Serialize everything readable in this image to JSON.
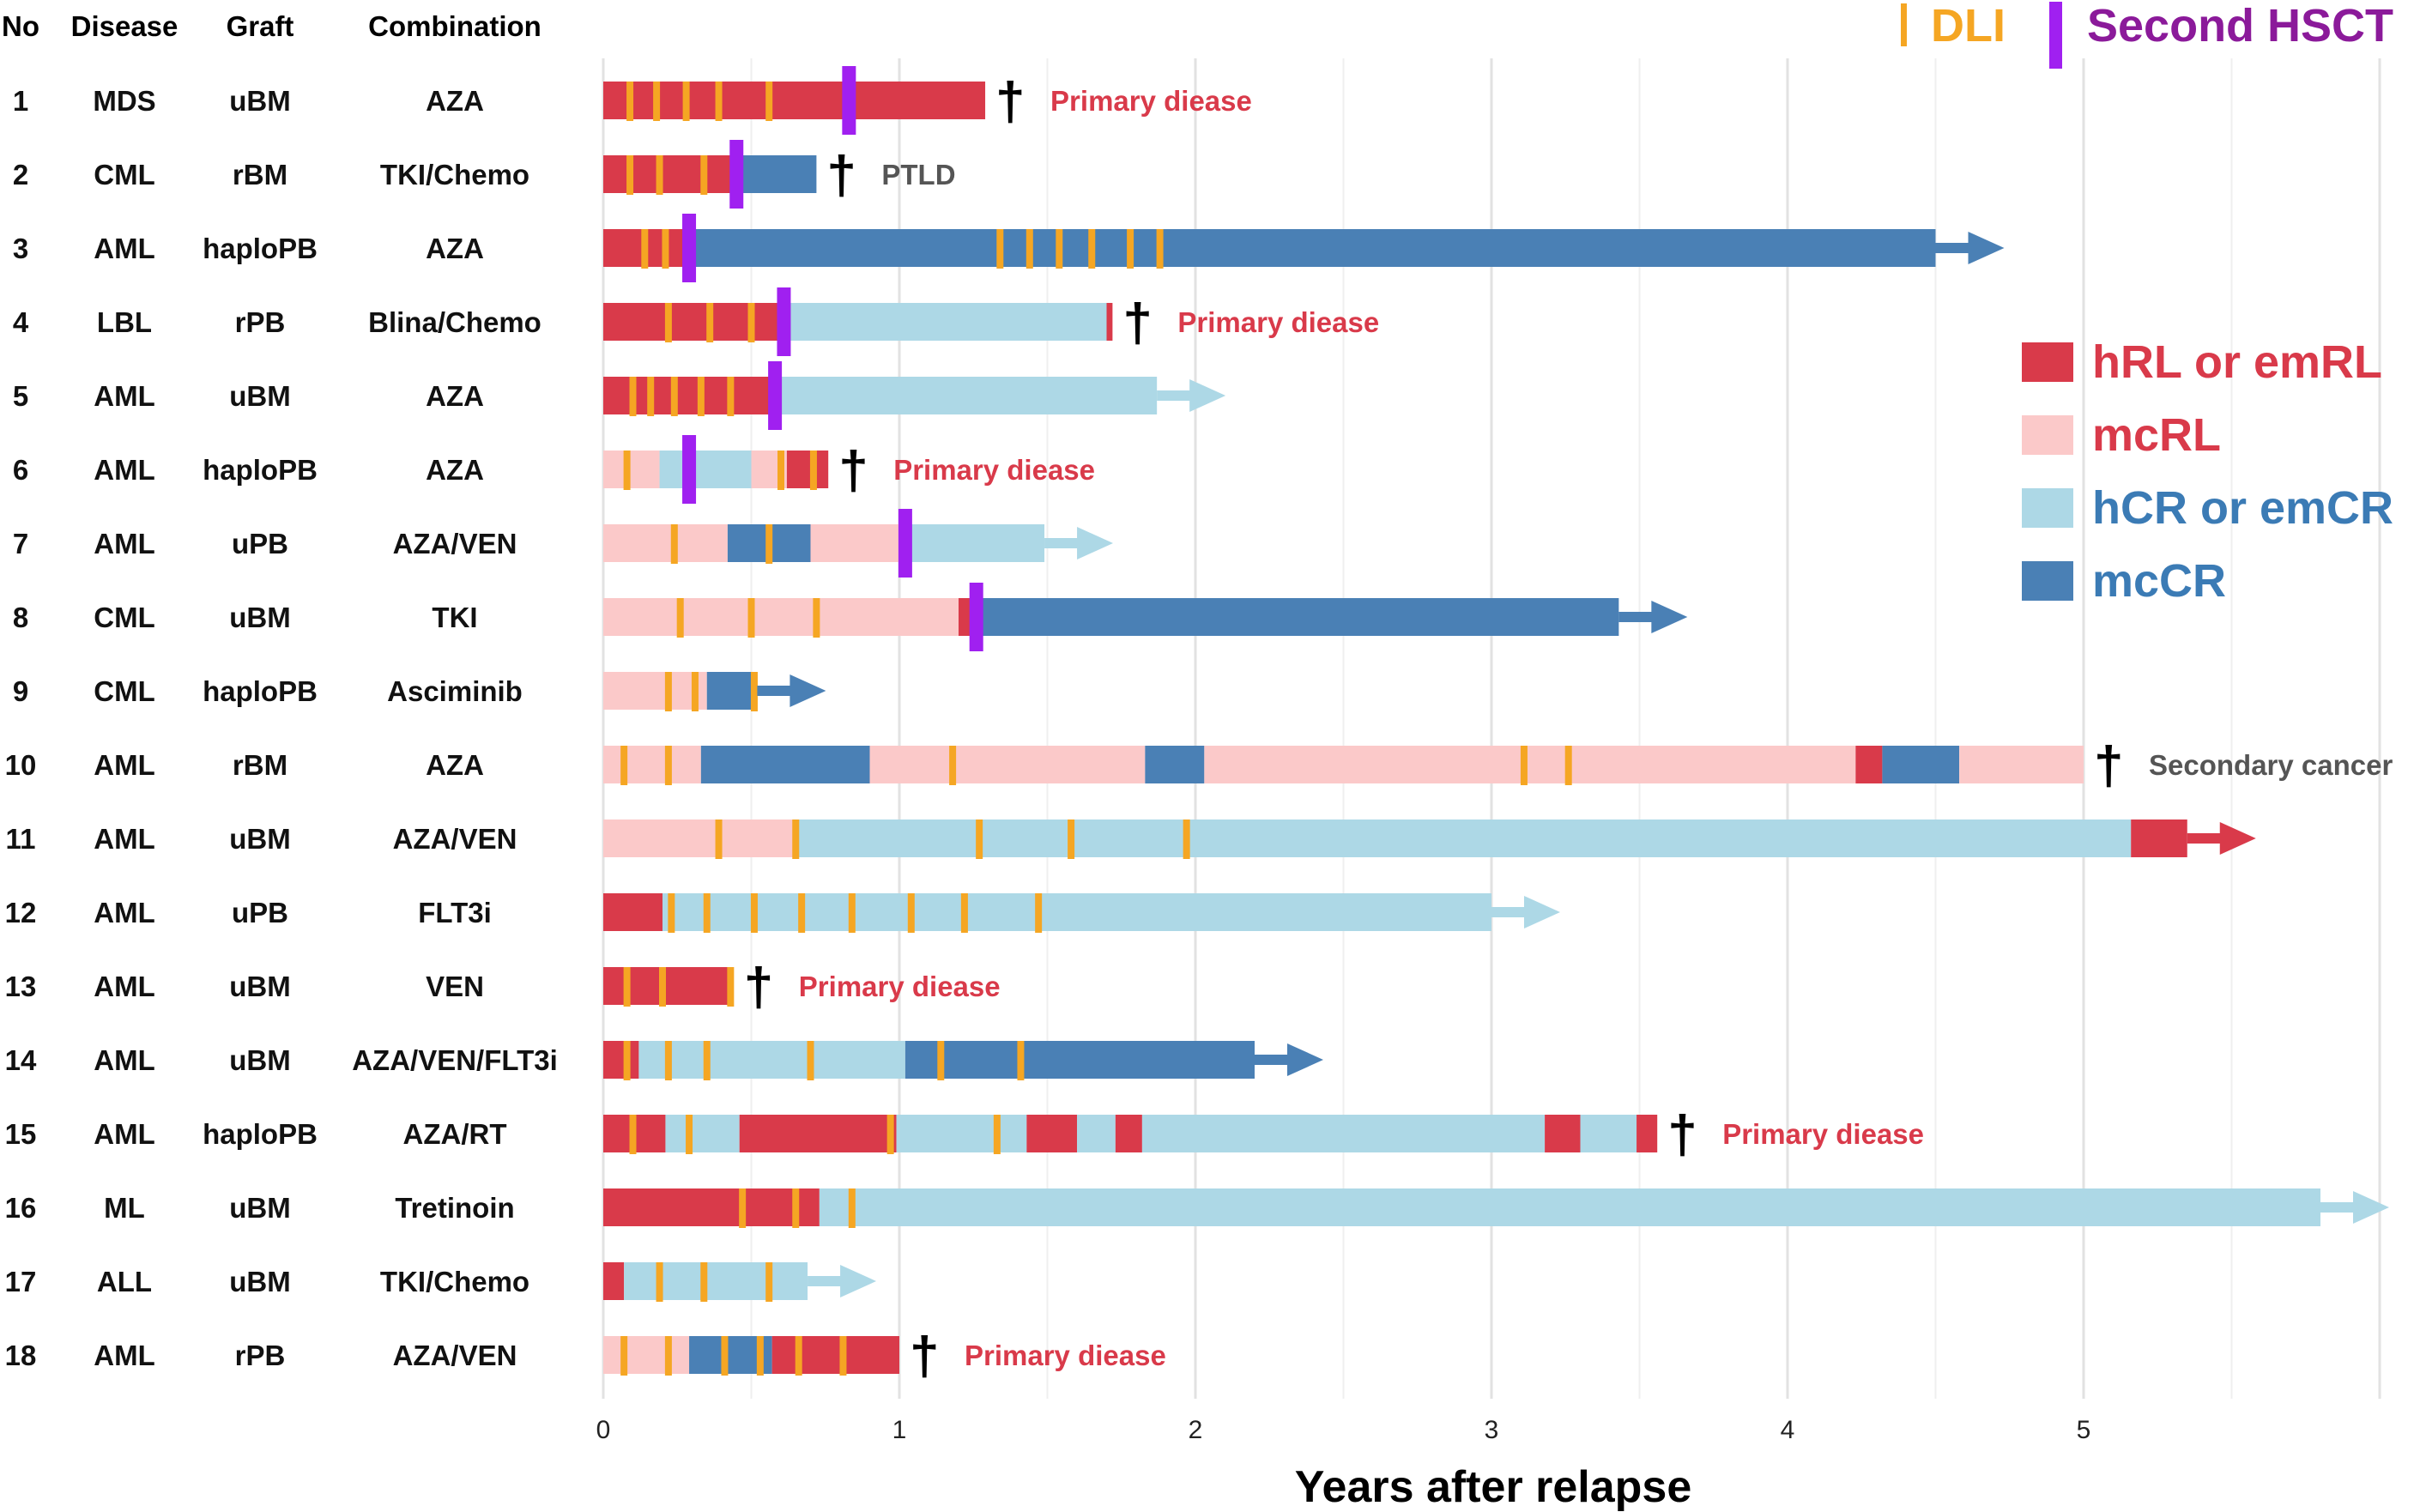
{
  "chart_data": {
    "type": "swimmer",
    "xlabel": "Years after relapse",
    "x_ticks": [
      0,
      1,
      2,
      3,
      4,
      5
    ],
    "xlim": [
      0,
      6
    ],
    "table_headers": {
      "no": "No",
      "disease": "Disease",
      "graft": "Graft",
      "combination": "Combination"
    },
    "legend": {
      "markers": [
        {
          "key": "dli",
          "label": "DLI",
          "color": "#F5A623"
        },
        {
          "key": "hsct",
          "label": "Second HSCT",
          "color": "#A020F0"
        }
      ],
      "states": [
        {
          "key": "hRL",
          "label": "hRL or emRL",
          "color": "#D93A4A",
          "text_color": "#D93A4A"
        },
        {
          "key": "mcRL",
          "label": "mcRL",
          "color": "#FBC9C9",
          "text_color": "#D93A4A"
        },
        {
          "key": "hCR",
          "label": "hCR or emCR",
          "color": "#ADD8E6",
          "text_color": "#3B7BB5"
        },
        {
          "key": "mcCR",
          "label": "mcCR",
          "color": "#4A80B5",
          "text_color": "#3B7BB5"
        }
      ]
    },
    "patients": [
      {
        "no": "1",
        "disease": "MDS",
        "graft": "uBM",
        "combination": "AZA",
        "segments": [
          {
            "state": "hRL",
            "start": 0,
            "end": 1.29
          }
        ],
        "dli": [
          0.09,
          0.18,
          0.28,
          0.39,
          0.56
        ],
        "hsct": [
          0.83
        ],
        "end": {
          "type": "death",
          "label": "Primary diease",
          "color": "#D93A4A"
        }
      },
      {
        "no": "2",
        "disease": "CML",
        "graft": "rBM",
        "combination": "TKI/Chemo",
        "segments": [
          {
            "state": "hRL",
            "start": 0,
            "end": 0.45
          },
          {
            "state": "mcCR",
            "start": 0.45,
            "end": 0.72
          }
        ],
        "dli": [
          0.09,
          0.19,
          0.34
        ],
        "hsct": [
          0.45
        ],
        "end": {
          "type": "death",
          "label": "PTLD",
          "color": "#555555"
        }
      },
      {
        "no": "3",
        "disease": "AML",
        "graft": "haploPB",
        "combination": "AZA",
        "segments": [
          {
            "state": "hRL",
            "start": 0,
            "end": 0.29
          },
          {
            "state": "mcCR",
            "start": 0.29,
            "end": 4.5
          }
        ],
        "dli": [
          0.14,
          0.21,
          1.34,
          1.44,
          1.54,
          1.65,
          1.78,
          1.88
        ],
        "hsct": [
          0.29
        ],
        "end": {
          "type": "arrow",
          "label": "",
          "color": "#4A80B5"
        }
      },
      {
        "no": "4",
        "disease": "LBL",
        "graft": "rPB",
        "combination": "Blina/Chemo",
        "segments": [
          {
            "state": "hRL",
            "start": 0,
            "end": 0.61
          },
          {
            "state": "hCR",
            "start": 0.61,
            "end": 1.7
          },
          {
            "state": "hRL",
            "start": 1.7,
            "end": 1.72
          }
        ],
        "dli": [
          0.22,
          0.36,
          0.5
        ],
        "hsct": [
          0.61
        ],
        "end": {
          "type": "death",
          "label": "Primary diease",
          "color": "#D93A4A"
        }
      },
      {
        "no": "5",
        "disease": "AML",
        "graft": "uBM",
        "combination": "AZA",
        "segments": [
          {
            "state": "hRL",
            "start": 0,
            "end": 0.58
          },
          {
            "state": "hCR",
            "start": 0.58,
            "end": 1.87
          }
        ],
        "dli": [
          0.1,
          0.16,
          0.24,
          0.33,
          0.43
        ],
        "hsct": [
          0.58
        ],
        "end": {
          "type": "arrow",
          "label": "",
          "color": "#ADD8E6"
        }
      },
      {
        "no": "6",
        "disease": "AML",
        "graft": "haploPB",
        "combination": "AZA",
        "segments": [
          {
            "state": "mcRL",
            "start": 0,
            "end": 0.19
          },
          {
            "state": "hCR",
            "start": 0.19,
            "end": 0.5
          },
          {
            "state": "mcRL",
            "start": 0.5,
            "end": 0.62
          },
          {
            "state": "hRL",
            "start": 0.62,
            "end": 0.76
          }
        ],
        "dli": [
          0.08,
          0.6,
          0.71
        ],
        "hsct": [
          0.29
        ],
        "end": {
          "type": "death",
          "label": "Primary diease",
          "color": "#D93A4A"
        }
      },
      {
        "no": "7",
        "disease": "AML",
        "graft": "uPB",
        "combination": "AZA/VEN",
        "segments": [
          {
            "state": "mcRL",
            "start": 0,
            "end": 0.42
          },
          {
            "state": "mcCR",
            "start": 0.42,
            "end": 0.7
          },
          {
            "state": "mcRL",
            "start": 0.7,
            "end": 1.02
          },
          {
            "state": "hCR",
            "start": 1.02,
            "end": 1.49
          }
        ],
        "dli": [
          0.24,
          0.56
        ],
        "hsct": [
          1.02
        ],
        "end": {
          "type": "arrow",
          "label": "",
          "color": "#ADD8E6"
        }
      },
      {
        "no": "8",
        "disease": "CML",
        "graft": "uBM",
        "combination": "TKI",
        "segments": [
          {
            "state": "mcRL",
            "start": 0,
            "end": 1.2
          },
          {
            "state": "hRL",
            "start": 1.2,
            "end": 1.26
          },
          {
            "state": "mcCR",
            "start": 1.26,
            "end": 3.43
          }
        ],
        "dli": [
          0.26,
          0.5,
          0.72
        ],
        "hsct": [
          1.26
        ],
        "end": {
          "type": "arrow",
          "label": "",
          "color": "#4A80B5"
        }
      },
      {
        "no": "9",
        "disease": "CML",
        "graft": "haploPB",
        "combination": "Asciminib",
        "segments": [
          {
            "state": "mcRL",
            "start": 0,
            "end": 0.35
          },
          {
            "state": "mcCR",
            "start": 0.35,
            "end": 0.52
          }
        ],
        "dli": [
          0.22,
          0.31,
          0.51
        ],
        "hsct": [],
        "end": {
          "type": "arrow",
          "label": "",
          "color": "#4A80B5"
        }
      },
      {
        "no": "10",
        "disease": "AML",
        "graft": "rBM",
        "combination": "AZA",
        "segments": [
          {
            "state": "mcRL",
            "start": 0,
            "end": 0.33
          },
          {
            "state": "mcCR",
            "start": 0.33,
            "end": 0.9
          },
          {
            "state": "mcRL",
            "start": 0.9,
            "end": 1.83
          },
          {
            "state": "mcCR",
            "start": 1.83,
            "end": 2.03
          },
          {
            "state": "mcRL",
            "start": 2.03,
            "end": 4.23
          },
          {
            "state": "hRL",
            "start": 4.23,
            "end": 4.32
          },
          {
            "state": "mcCR",
            "start": 4.32,
            "end": 4.58
          },
          {
            "state": "mcRL",
            "start": 4.58,
            "end": 5.0
          }
        ],
        "dli": [
          0.07,
          0.22,
          1.18,
          3.11,
          3.26
        ],
        "hsct": [],
        "end": {
          "type": "death",
          "label": "Secondary cancer",
          "color": "#555555"
        }
      },
      {
        "no": "11",
        "disease": "AML",
        "graft": "uBM",
        "combination": "AZA/VEN",
        "segments": [
          {
            "state": "mcRL",
            "start": 0,
            "end": 0.64
          },
          {
            "state": "hCR",
            "start": 0.64,
            "end": 5.16
          },
          {
            "state": "hRL",
            "start": 5.16,
            "end": 5.35
          }
        ],
        "dli": [
          0.39,
          0.65,
          1.27,
          1.58,
          1.97
        ],
        "hsct": [],
        "end": {
          "type": "arrow",
          "label": "",
          "color": "#D93A4A"
        }
      },
      {
        "no": "12",
        "disease": "AML",
        "graft": "uPB",
        "combination": "FLT3i",
        "segments": [
          {
            "state": "hRL",
            "start": 0,
            "end": 0.2
          },
          {
            "state": "hCR",
            "start": 0.2,
            "end": 3.0
          }
        ],
        "dli": [
          0.23,
          0.35,
          0.51,
          0.67,
          0.84,
          1.04,
          1.22,
          1.47
        ],
        "hsct": [],
        "end": {
          "type": "arrow",
          "label": "",
          "color": "#ADD8E6"
        }
      },
      {
        "no": "13",
        "disease": "AML",
        "graft": "uBM",
        "combination": "VEN",
        "segments": [
          {
            "state": "hRL",
            "start": 0,
            "end": 0.44
          }
        ],
        "dli": [
          0.08,
          0.2,
          0.43
        ],
        "hsct": [],
        "end": {
          "type": "death",
          "label": "Primary diease",
          "color": "#D93A4A"
        }
      },
      {
        "no": "14",
        "disease": "AML",
        "graft": "uBM",
        "combination": "AZA/VEN/FLT3i",
        "segments": [
          {
            "state": "hRL",
            "start": 0,
            "end": 0.12
          },
          {
            "state": "hCR",
            "start": 0.12,
            "end": 1.02
          },
          {
            "state": "mcCR",
            "start": 1.02,
            "end": 2.2
          }
        ],
        "dli": [
          0.08,
          0.22,
          0.35,
          0.7,
          1.14,
          1.41
        ],
        "hsct": [],
        "end": {
          "type": "arrow",
          "label": "",
          "color": "#4A80B5"
        }
      },
      {
        "no": "15",
        "disease": "AML",
        "graft": "haploPB",
        "combination": "AZA/RT",
        "segments": [
          {
            "state": "hRL",
            "start": 0,
            "end": 0.21
          },
          {
            "state": "hCR",
            "start": 0.21,
            "end": 0.46
          },
          {
            "state": "hRL",
            "start": 0.46,
            "end": 0.99
          },
          {
            "state": "hCR",
            "start": 0.99,
            "end": 1.43
          },
          {
            "state": "hRL",
            "start": 1.43,
            "end": 1.6
          },
          {
            "state": "hCR",
            "start": 1.6,
            "end": 1.73
          },
          {
            "state": "hRL",
            "start": 1.73,
            "end": 1.82
          },
          {
            "state": "hCR",
            "start": 1.82,
            "end": 3.18
          },
          {
            "state": "hRL",
            "start": 3.18,
            "end": 3.3
          },
          {
            "state": "hCR",
            "start": 3.3,
            "end": 3.49
          },
          {
            "state": "hRL",
            "start": 3.49,
            "end": 3.56
          }
        ],
        "dli": [
          0.1,
          0.29,
          0.97,
          1.33
        ],
        "hsct": [],
        "end": {
          "type": "death",
          "label": "Primary diease",
          "color": "#D93A4A"
        }
      },
      {
        "no": "16",
        "disease": "ML",
        "graft": "uBM",
        "combination": "Tretinoin",
        "segments": [
          {
            "state": "hRL",
            "start": 0,
            "end": 0.73
          },
          {
            "state": "hCR",
            "start": 0.73,
            "end": 5.8
          }
        ],
        "dli": [
          0.47,
          0.65,
          0.84
        ],
        "hsct": [],
        "end": {
          "type": "arrow",
          "label": "",
          "color": "#ADD8E6"
        }
      },
      {
        "no": "17",
        "disease": "ALL",
        "graft": "uBM",
        "combination": "TKI/Chemo",
        "segments": [
          {
            "state": "hRL",
            "start": 0,
            "end": 0.07
          },
          {
            "state": "hCR",
            "start": 0.07,
            "end": 0.69
          }
        ],
        "dli": [
          0.19,
          0.34,
          0.56
        ],
        "hsct": [],
        "end": {
          "type": "arrow",
          "label": "",
          "color": "#ADD8E6"
        }
      },
      {
        "no": "18",
        "disease": "AML",
        "graft": "rPB",
        "combination": "AZA/VEN",
        "segments": [
          {
            "state": "mcRL",
            "start": 0,
            "end": 0.29
          },
          {
            "state": "mcCR",
            "start": 0.29,
            "end": 0.57
          },
          {
            "state": "hRL",
            "start": 0.57,
            "end": 1.0
          }
        ],
        "dli": [
          0.07,
          0.22,
          0.41,
          0.53,
          0.66,
          0.81
        ],
        "hsct": [],
        "end": {
          "type": "death",
          "label": "Primary diease",
          "color": "#D93A4A"
        }
      }
    ]
  }
}
